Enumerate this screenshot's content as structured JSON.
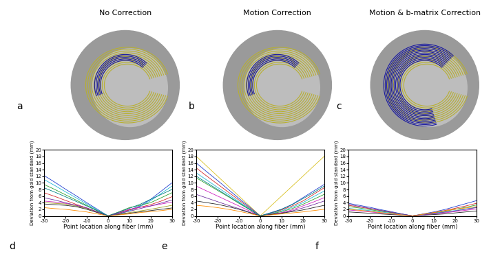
{
  "columns": [
    "No Correction",
    "Motion Correction",
    "Motion & b-matrix Correction"
  ],
  "image_panels": [
    "a",
    "b",
    "c"
  ],
  "chart_data": [
    {
      "type": "line",
      "panel": "d",
      "x_label": "Point location along fiber (mm)",
      "y_label": "Deviation from gold standard (mm)",
      "x": [
        -30,
        -25,
        -20,
        -15,
        -10,
        -5,
        0,
        5,
        10,
        15,
        20,
        25,
        30
      ],
      "xlim": [
        -30,
        30
      ],
      "xticks": [
        -30,
        -20,
        -10,
        0,
        10,
        20,
        30
      ],
      "ylim": [
        0,
        20
      ],
      "yticks": [
        0,
        2,
        4,
        6,
        8,
        10,
        12,
        14,
        16,
        18,
        20
      ],
      "series": [
        {
          "color": "#1f3fd0",
          "values": [
            12.2,
            10.2,
            8.1,
            6.1,
            4.0,
            2.0,
            0,
            0.8,
            1.8,
            3.0,
            5.0,
            7.5,
            10.0
          ]
        },
        {
          "color": "#20b8d8",
          "values": [
            11.0,
            9.2,
            7.3,
            5.5,
            3.6,
            1.8,
            0,
            0.6,
            1.5,
            2.8,
            4.6,
            6.8,
            9.0
          ]
        },
        {
          "color": "#2ca02c",
          "values": [
            9.5,
            8.0,
            6.4,
            4.8,
            3.2,
            1.6,
            0,
            1.2,
            2.5,
            3.2,
            4.0,
            5.5,
            7.0
          ]
        },
        {
          "color": "#d62728",
          "values": [
            7.0,
            5.9,
            4.7,
            3.5,
            2.4,
            1.2,
            0,
            0.9,
            1.8,
            2.6,
            3.4,
            4.5,
            5.8
          ]
        },
        {
          "color": "#d020c0",
          "values": [
            4.5,
            4.2,
            3.8,
            3.2,
            2.4,
            1.2,
            0,
            1.0,
            2.0,
            2.6,
            3.0,
            3.6,
            4.2
          ]
        },
        {
          "color": "#a0a020",
          "values": [
            4.0,
            3.8,
            3.6,
            3.0,
            2.2,
            1.1,
            0,
            0.5,
            1.0,
            1.5,
            2.0,
            2.6,
            3.2
          ]
        },
        {
          "color": "#222222",
          "values": [
            3.6,
            3.4,
            3.2,
            2.8,
            2.0,
            1.0,
            0,
            0.4,
            0.8,
            1.2,
            1.6,
            2.0,
            2.4
          ]
        },
        {
          "color": "#7030a0",
          "values": [
            5.5,
            4.8,
            4.0,
            3.2,
            2.4,
            1.2,
            0,
            0.7,
            1.4,
            2.2,
            3.0,
            3.9,
            4.8
          ]
        },
        {
          "color": "#ff8c00",
          "values": [
            2.5,
            2.2,
            2.0,
            1.6,
            1.2,
            0.6,
            0,
            0.3,
            0.6,
            1.0,
            1.3,
            1.6,
            2.0
          ]
        },
        {
          "color": "#008080",
          "values": [
            8.5,
            7.2,
            5.8,
            4.4,
            3.0,
            1.5,
            0,
            1.1,
            2.3,
            3.5,
            5.0,
            6.5,
            8.0
          ]
        }
      ]
    },
    {
      "type": "line",
      "panel": "e",
      "x_label": "Point location along fiber (mm)",
      "y_label": "Deviation from gold standard (mm)",
      "x": [
        -30,
        -25,
        -20,
        -15,
        -10,
        -5,
        0,
        5,
        10,
        15,
        20,
        25,
        30
      ],
      "xlim": [
        -30,
        30
      ],
      "xticks": [
        -30,
        -20,
        -10,
        0,
        10,
        20,
        30
      ],
      "ylim": [
        0,
        20
      ],
      "yticks": [
        0,
        2,
        4,
        6,
        8,
        10,
        12,
        14,
        16,
        18,
        20
      ],
      "series": [
        {
          "color": "#d8c020",
          "values": [
            18.0,
            15.0,
            12.0,
            9.0,
            6.0,
            3.0,
            0,
            3.0,
            6.0,
            9.0,
            12.0,
            15.0,
            18.0
          ]
        },
        {
          "color": "#1f3fd0",
          "values": [
            16.0,
            13.3,
            10.7,
            8.0,
            5.3,
            2.7,
            0,
            1.0,
            2.0,
            3.5,
            5.5,
            7.5,
            9.5
          ]
        },
        {
          "color": "#d62728",
          "values": [
            14.5,
            12.0,
            9.6,
            7.2,
            4.8,
            2.4,
            0,
            0.8,
            1.8,
            3.0,
            4.5,
            6.5,
            8.5
          ]
        },
        {
          "color": "#20b8d8",
          "values": [
            13.0,
            10.8,
            8.6,
            6.5,
            4.3,
            2.2,
            0,
            0.7,
            1.5,
            2.6,
            4.0,
            5.8,
            7.5
          ]
        },
        {
          "color": "#2ca02c",
          "values": [
            11.5,
            9.6,
            7.7,
            5.8,
            3.8,
            1.9,
            0,
            0.6,
            1.3,
            2.2,
            3.5,
            5.0,
            6.5
          ]
        },
        {
          "color": "#d020c0",
          "values": [
            9.0,
            7.5,
            6.0,
            4.5,
            3.0,
            1.5,
            0,
            0.5,
            1.0,
            1.8,
            3.0,
            4.2,
            5.5
          ]
        },
        {
          "color": "#7030a0",
          "values": [
            6.5,
            5.4,
            4.3,
            3.2,
            2.2,
            1.1,
            0,
            0.4,
            0.9,
            1.5,
            2.4,
            3.4,
            4.5
          ]
        },
        {
          "color": "#222222",
          "values": [
            4.5,
            4.0,
            3.5,
            2.8,
            2.0,
            1.0,
            0,
            0.4,
            0.8,
            1.3,
            1.8,
            2.5,
            3.2
          ]
        },
        {
          "color": "#ff8c00",
          "values": [
            3.2,
            2.9,
            2.5,
            2.0,
            1.4,
            0.7,
            0,
            0.3,
            0.6,
            0.9,
            1.2,
            1.6,
            2.0
          ]
        },
        {
          "color": "#008080",
          "values": [
            12.0,
            10.0,
            8.0,
            6.0,
            4.0,
            2.0,
            0,
            0.9,
            2.0,
            3.4,
            5.2,
            7.0,
            9.0
          ]
        }
      ]
    },
    {
      "type": "line",
      "panel": "f",
      "x_label": "Point location along fiber (mm)",
      "y_label": "Deviation from gold standard (mm)",
      "x": [
        -30,
        -25,
        -20,
        -15,
        -10,
        -5,
        0,
        5,
        10,
        15,
        20,
        25,
        30
      ],
      "xlim": [
        -30,
        30
      ],
      "xticks": [
        -30,
        -20,
        -10,
        0,
        10,
        20,
        30
      ],
      "ylim": [
        0,
        20
      ],
      "yticks": [
        0,
        2,
        4,
        6,
        8,
        10,
        12,
        14,
        16,
        18,
        20
      ],
      "series": [
        {
          "color": "#1f3fd0",
          "values": [
            3.8,
            3.2,
            2.6,
            1.9,
            1.3,
            0.6,
            0,
            0.6,
            1.2,
            1.9,
            2.8,
            3.7,
            4.6
          ]
        },
        {
          "color": "#d62728",
          "values": [
            3.2,
            2.7,
            2.2,
            1.6,
            1.1,
            0.5,
            0,
            0.5,
            1.0,
            1.6,
            2.3,
            3.0,
            3.8
          ]
        },
        {
          "color": "#2ca02c",
          "values": [
            2.8,
            2.4,
            1.9,
            1.4,
            1.0,
            0.5,
            0,
            0.4,
            0.9,
            1.4,
            2.0,
            2.6,
            3.3
          ]
        },
        {
          "color": "#20b8d8",
          "values": [
            2.3,
            1.9,
            1.6,
            1.2,
            0.8,
            0.4,
            0,
            0.4,
            0.8,
            1.2,
            1.6,
            2.1,
            2.6
          ]
        },
        {
          "color": "#d020c0",
          "values": [
            1.8,
            1.5,
            1.2,
            0.9,
            0.6,
            0.3,
            0,
            0.3,
            0.6,
            0.9,
            1.3,
            1.7,
            2.1
          ]
        },
        {
          "color": "#222222",
          "values": [
            1.2,
            1.0,
            0.8,
            0.6,
            0.4,
            0.2,
            0,
            0.2,
            0.4,
            0.6,
            0.9,
            1.2,
            1.5
          ]
        },
        {
          "color": "#7030a0",
          "values": [
            3.5,
            2.9,
            2.3,
            1.7,
            1.1,
            0.6,
            0,
            0.3,
            0.7,
            1.1,
            1.5,
            2.0,
            2.5
          ]
        },
        {
          "color": "#ff8c00",
          "values": [
            2.0,
            1.7,
            1.4,
            1.0,
            0.7,
            0.3,
            0,
            0.5,
            1.0,
            1.5,
            2.0,
            2.4,
            2.8
          ]
        }
      ]
    }
  ]
}
